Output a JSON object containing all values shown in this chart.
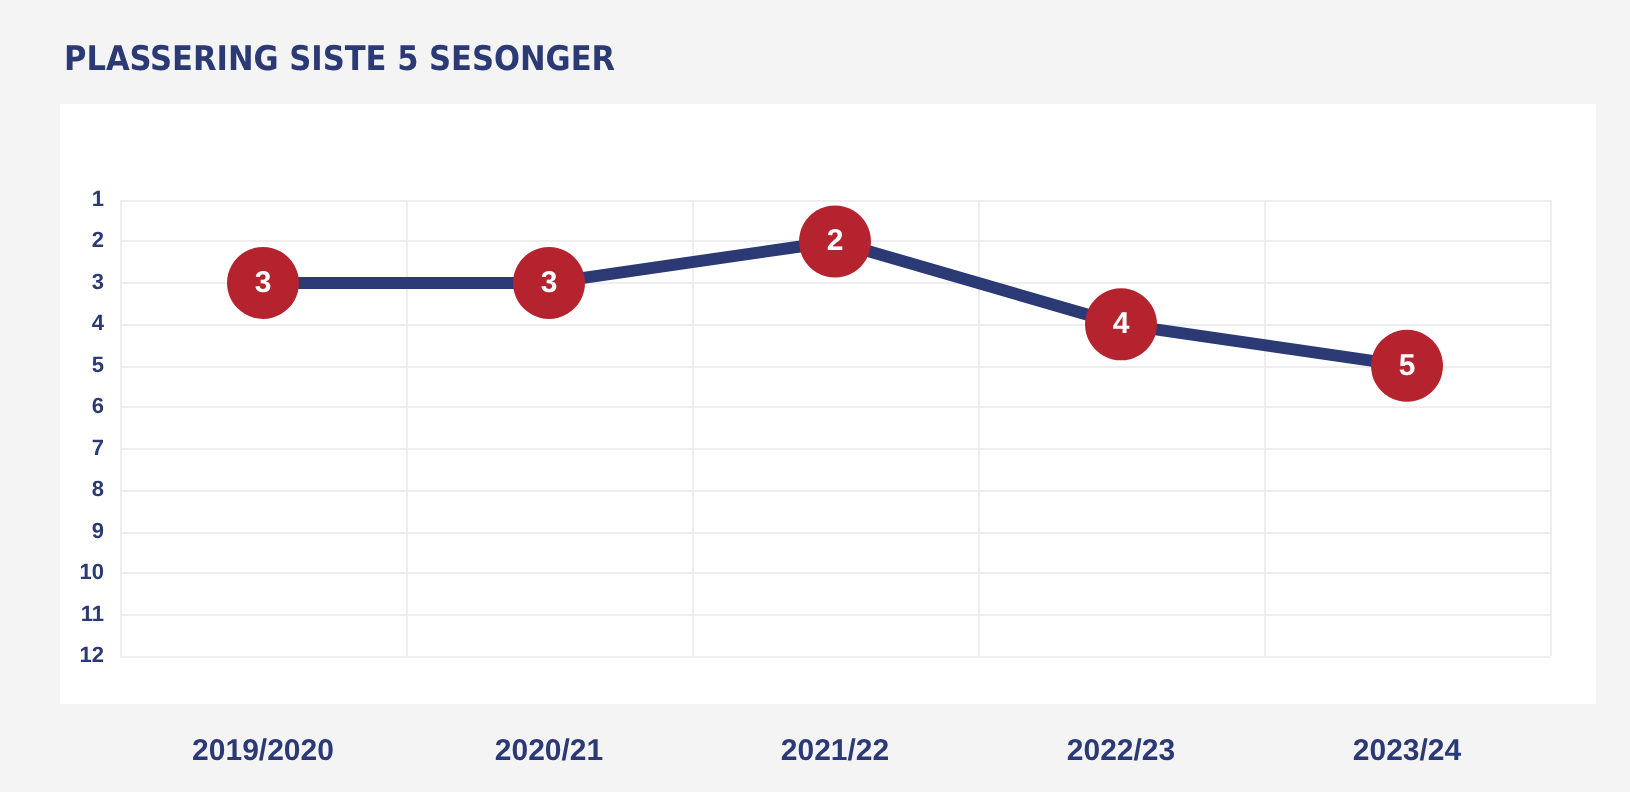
{
  "chart_data": {
    "type": "line",
    "title": "PLASSERING SISTE 5 SESONGER",
    "categories": [
      "2019/2020",
      "2020/21",
      "2021/22",
      "2022/23",
      "2023/24"
    ],
    "series": [
      {
        "color": "#2b3a74",
        "values": [
          3,
          3,
          2,
          4,
          5
        ]
      }
    ],
    "ylim": [
      12,
      1
    ],
    "yticks": [
      1,
      2,
      3,
      4,
      5,
      6,
      7,
      8,
      9,
      10,
      11,
      12
    ],
    "grid": true,
    "data_labels": true,
    "marker": "circle",
    "line_style": "solid"
  }
}
